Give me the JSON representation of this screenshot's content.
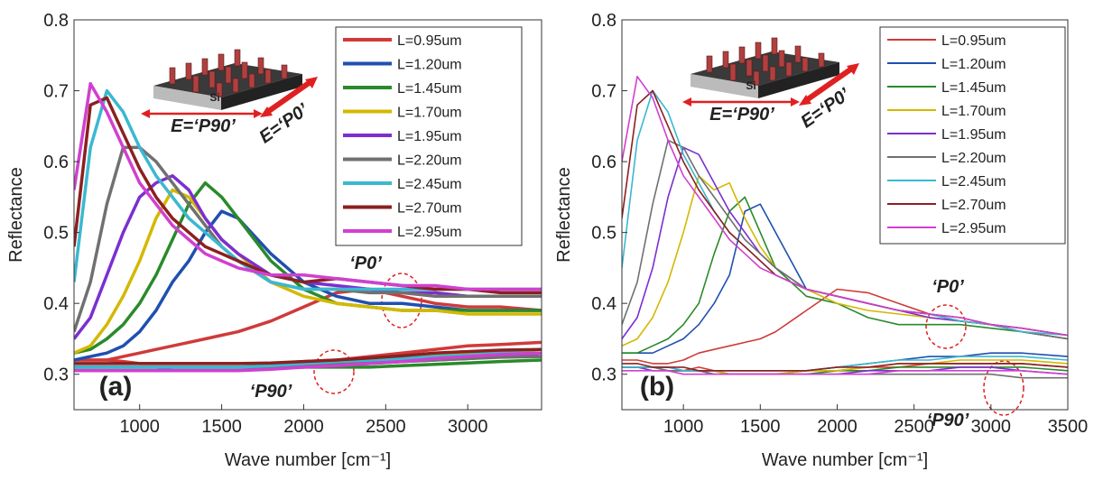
{
  "chart_data": [
    {
      "type": "line",
      "xlabel": "Wave number [cm⁻¹]",
      "ylabel": "Reflectance",
      "x": [
        600,
        700,
        800,
        900,
        1000,
        1100,
        1200,
        1300,
        1400,
        1500,
        1600,
        1800,
        2000,
        2200,
        2400,
        2600,
        2800,
        3000,
        3200,
        3450
      ],
      "xlim": [
        600,
        3450
      ],
      "xticks": [
        1000,
        1500,
        2000,
        2500,
        3000
      ],
      "ylim": [
        0.25,
        0.8
      ],
      "yticks": [
        0.3,
        0.4,
        0.5,
        0.6,
        0.7,
        0.8
      ],
      "grid": false,
      "legend": "upper right",
      "series": [
        {
          "name": "L=0.95um",
          "color": "#d03a3a",
          "values": [
            0.32,
            0.32,
            0.32,
            0.325,
            0.33,
            0.335,
            0.34,
            0.345,
            0.35,
            0.355,
            0.36,
            0.375,
            0.395,
            0.415,
            0.42,
            0.41,
            0.4,
            0.395,
            0.395,
            0.39
          ]
        },
        {
          "name": "L=1.20um",
          "color": "#1f4fb0",
          "values": [
            0.32,
            0.325,
            0.33,
            0.34,
            0.36,
            0.39,
            0.43,
            0.46,
            0.5,
            0.53,
            0.52,
            0.47,
            0.43,
            0.41,
            0.4,
            0.4,
            0.395,
            0.39,
            0.39,
            0.39
          ]
        },
        {
          "name": "L=1.45um",
          "color": "#2a8a2a",
          "values": [
            0.33,
            0.335,
            0.35,
            0.37,
            0.4,
            0.44,
            0.49,
            0.54,
            0.57,
            0.55,
            0.52,
            0.46,
            0.42,
            0.4,
            0.395,
            0.39,
            0.39,
            0.39,
            0.39,
            0.39
          ]
        },
        {
          "name": "L=1.70um",
          "color": "#d4b800",
          "values": [
            0.33,
            0.34,
            0.37,
            0.41,
            0.46,
            0.52,
            0.56,
            0.55,
            0.52,
            0.49,
            0.47,
            0.43,
            0.41,
            0.4,
            0.395,
            0.39,
            0.39,
            0.385,
            0.385,
            0.385
          ]
        },
        {
          "name": "L=1.95um",
          "color": "#7b2fd0",
          "values": [
            0.35,
            0.38,
            0.44,
            0.5,
            0.55,
            0.57,
            0.58,
            0.56,
            0.52,
            0.49,
            0.47,
            0.44,
            0.43,
            0.425,
            0.42,
            0.415,
            0.415,
            0.41,
            0.41,
            0.41
          ]
        },
        {
          "name": "L=2.20um",
          "color": "#707070",
          "values": [
            0.36,
            0.43,
            0.54,
            0.62,
            0.62,
            0.6,
            0.57,
            0.54,
            0.51,
            0.48,
            0.46,
            0.43,
            0.42,
            0.42,
            0.415,
            0.415,
            0.41,
            0.41,
            0.41,
            0.41
          ]
        },
        {
          "name": "L=2.45um",
          "color": "#3bb8d0",
          "values": [
            0.43,
            0.62,
            0.7,
            0.67,
            0.62,
            0.58,
            0.55,
            0.52,
            0.5,
            0.48,
            0.46,
            0.43,
            0.42,
            0.42,
            0.42,
            0.42,
            0.42,
            0.42,
            0.42,
            0.42
          ]
        },
        {
          "name": "L=2.70um",
          "color": "#8b2020",
          "values": [
            0.48,
            0.68,
            0.69,
            0.64,
            0.59,
            0.55,
            0.52,
            0.5,
            0.48,
            0.47,
            0.46,
            0.44,
            0.43,
            0.435,
            0.43,
            0.425,
            0.42,
            0.42,
            0.415,
            0.415
          ]
        },
        {
          "name": "L=2.95um",
          "color": "#d040d0",
          "values": [
            0.56,
            0.71,
            0.67,
            0.62,
            0.57,
            0.54,
            0.51,
            0.49,
            0.47,
            0.46,
            0.45,
            0.44,
            0.44,
            0.435,
            0.43,
            0.425,
            0.425,
            0.42,
            0.42,
            0.42
          ]
        }
      ],
      "series_p90": [
        {
          "color": "#d03a3a",
          "values": [
            0.32,
            0.32,
            0.32,
            0.318,
            0.315,
            0.315,
            0.315,
            0.315,
            0.315,
            0.315,
            0.315,
            0.315,
            0.318,
            0.32,
            0.325,
            0.33,
            0.335,
            0.34,
            0.342,
            0.345
          ]
        },
        {
          "color": "#1f4fb0",
          "values": [
            0.31,
            0.31,
            0.31,
            0.31,
            0.31,
            0.31,
            0.31,
            0.31,
            0.31,
            0.31,
            0.31,
            0.31,
            0.312,
            0.315,
            0.318,
            0.32,
            0.322,
            0.325,
            0.328,
            0.33
          ]
        },
        {
          "color": "#2a8a2a",
          "values": [
            0.31,
            0.31,
            0.31,
            0.31,
            0.31,
            0.31,
            0.31,
            0.31,
            0.31,
            0.31,
            0.31,
            0.31,
            0.31,
            0.31,
            0.31,
            0.312,
            0.314,
            0.316,
            0.318,
            0.32
          ]
        },
        {
          "color": "#d4b800",
          "values": [
            0.31,
            0.31,
            0.31,
            0.31,
            0.31,
            0.31,
            0.31,
            0.31,
            0.31,
            0.31,
            0.31,
            0.312,
            0.315,
            0.318,
            0.32,
            0.323,
            0.326,
            0.33,
            0.332,
            0.335
          ]
        },
        {
          "color": "#7b2fd0",
          "values": [
            0.305,
            0.305,
            0.305,
            0.305,
            0.305,
            0.305,
            0.31,
            0.31,
            0.31,
            0.31,
            0.31,
            0.31,
            0.31,
            0.312,
            0.315,
            0.318,
            0.32,
            0.322,
            0.325,
            0.33
          ]
        },
        {
          "color": "#707070",
          "values": [
            0.31,
            0.31,
            0.31,
            0.31,
            0.31,
            0.31,
            0.31,
            0.31,
            0.31,
            0.31,
            0.31,
            0.31,
            0.312,
            0.314,
            0.316,
            0.318,
            0.32,
            0.322,
            0.324,
            0.325
          ]
        },
        {
          "color": "#3bb8d0",
          "values": [
            0.31,
            0.31,
            0.31,
            0.31,
            0.31,
            0.31,
            0.31,
            0.31,
            0.31,
            0.31,
            0.31,
            0.312,
            0.315,
            0.318,
            0.32,
            0.322,
            0.325,
            0.327,
            0.33,
            0.33
          ]
        },
        {
          "color": "#8b2020",
          "values": [
            0.315,
            0.315,
            0.315,
            0.315,
            0.315,
            0.315,
            0.315,
            0.315,
            0.315,
            0.315,
            0.315,
            0.316,
            0.318,
            0.32,
            0.323,
            0.326,
            0.33,
            0.332,
            0.334,
            0.335
          ]
        },
        {
          "color": "#d040d0",
          "values": [
            0.305,
            0.305,
            0.305,
            0.305,
            0.305,
            0.305,
            0.305,
            0.305,
            0.305,
            0.305,
            0.305,
            0.307,
            0.31,
            0.312,
            0.315,
            0.318,
            0.322,
            0.325,
            0.328,
            0.33
          ]
        }
      ],
      "annotations": [
        "Si",
        "E=‘P90’",
        "E=‘P0’",
        "‘P0’",
        "‘P90’",
        "(a)"
      ]
    },
    {
      "type": "line",
      "xlabel": "Wave number [cm⁻¹]",
      "ylabel": "Reflectance",
      "x": [
        600,
        700,
        800,
        900,
        1000,
        1100,
        1200,
        1300,
        1400,
        1500,
        1600,
        1800,
        2000,
        2200,
        2400,
        2600,
        2800,
        3000,
        3200,
        3500
      ],
      "xlim": [
        600,
        3500
      ],
      "xticks": [
        1000,
        1500,
        2000,
        2500,
        3000,
        3500
      ],
      "ylim": [
        0.25,
        0.8
      ],
      "yticks": [
        0.3,
        0.4,
        0.5,
        0.6,
        0.7,
        0.8
      ],
      "grid": false,
      "legend": "upper right",
      "series": [
        {
          "name": "L=0.95um",
          "color": "#d03a3a",
          "values": [
            0.32,
            0.32,
            0.315,
            0.315,
            0.32,
            0.33,
            0.335,
            0.34,
            0.345,
            0.35,
            0.36,
            0.39,
            0.42,
            0.415,
            0.4,
            0.385,
            0.375,
            0.37,
            0.365,
            0.355
          ]
        },
        {
          "name": "L=1.20um",
          "color": "#1f4fb0",
          "values": [
            0.33,
            0.33,
            0.33,
            0.34,
            0.35,
            0.37,
            0.4,
            0.44,
            0.53,
            0.54,
            0.5,
            0.42,
            0.41,
            0.4,
            0.39,
            0.385,
            0.375,
            0.37,
            0.36,
            0.35
          ]
        },
        {
          "name": "L=1.45um",
          "color": "#2a8a2a",
          "values": [
            0.33,
            0.33,
            0.34,
            0.35,
            0.37,
            0.4,
            0.47,
            0.53,
            0.55,
            0.5,
            0.45,
            0.41,
            0.4,
            0.38,
            0.37,
            0.37,
            0.37,
            0.365,
            0.36,
            0.35
          ]
        },
        {
          "name": "L=1.70um",
          "color": "#d4b800",
          "values": [
            0.34,
            0.35,
            0.38,
            0.43,
            0.5,
            0.58,
            0.56,
            0.57,
            0.52,
            0.48,
            0.45,
            0.42,
            0.4,
            0.39,
            0.385,
            0.38,
            0.375,
            0.37,
            0.36,
            0.35
          ]
        },
        {
          "name": "L=1.95um",
          "color": "#7b2fd0",
          "values": [
            0.35,
            0.38,
            0.45,
            0.55,
            0.62,
            0.61,
            0.57,
            0.53,
            0.5,
            0.47,
            0.45,
            0.42,
            0.41,
            0.4,
            0.39,
            0.38,
            0.375,
            0.37,
            0.36,
            0.35
          ]
        },
        {
          "name": "L=2.20um",
          "color": "#707070",
          "values": [
            0.37,
            0.43,
            0.54,
            0.63,
            0.62,
            0.58,
            0.55,
            0.52,
            0.49,
            0.47,
            0.45,
            0.42,
            0.41,
            0.4,
            0.39,
            0.385,
            0.375,
            0.37,
            0.36,
            0.35
          ]
        },
        {
          "name": "L=2.45um",
          "color": "#3bb8d0",
          "values": [
            0.45,
            0.63,
            0.7,
            0.67,
            0.61,
            0.57,
            0.53,
            0.5,
            0.48,
            0.46,
            0.44,
            0.42,
            0.41,
            0.4,
            0.39,
            0.385,
            0.375,
            0.37,
            0.36,
            0.355
          ]
        },
        {
          "name": "L=2.70um",
          "color": "#8b2020",
          "values": [
            0.52,
            0.68,
            0.7,
            0.65,
            0.6,
            0.56,
            0.53,
            0.5,
            0.48,
            0.46,
            0.44,
            0.42,
            0.41,
            0.4,
            0.39,
            0.385,
            0.38,
            0.37,
            0.365,
            0.355
          ]
        },
        {
          "name": "L=2.95um",
          "color": "#d040d0",
          "values": [
            0.6,
            0.72,
            0.69,
            0.63,
            0.58,
            0.55,
            0.52,
            0.49,
            0.47,
            0.45,
            0.44,
            0.42,
            0.41,
            0.4,
            0.39,
            0.385,
            0.38,
            0.37,
            0.365,
            0.355
          ]
        }
      ],
      "series_p90": [
        {
          "color": "#d03a3a",
          "values": [
            0.31,
            0.31,
            0.31,
            0.31,
            0.305,
            0.31,
            0.305,
            0.305,
            0.305,
            0.305,
            0.305,
            0.305,
            0.305,
            0.31,
            0.31,
            0.315,
            0.315,
            0.315,
            0.315,
            0.31
          ]
        },
        {
          "color": "#1f4fb0",
          "values": [
            0.31,
            0.31,
            0.31,
            0.31,
            0.305,
            0.305,
            0.305,
            0.3,
            0.3,
            0.3,
            0.3,
            0.305,
            0.31,
            0.315,
            0.32,
            0.325,
            0.325,
            0.33,
            0.33,
            0.325
          ]
        },
        {
          "color": "#2a8a2a",
          "values": [
            0.31,
            0.31,
            0.31,
            0.305,
            0.305,
            0.305,
            0.305,
            0.3,
            0.3,
            0.3,
            0.3,
            0.3,
            0.305,
            0.305,
            0.31,
            0.31,
            0.31,
            0.31,
            0.31,
            0.305
          ]
        },
        {
          "color": "#d4b800",
          "values": [
            0.31,
            0.31,
            0.31,
            0.305,
            0.305,
            0.305,
            0.305,
            0.3,
            0.3,
            0.3,
            0.3,
            0.305,
            0.305,
            0.31,
            0.315,
            0.315,
            0.32,
            0.32,
            0.32,
            0.315
          ]
        },
        {
          "color": "#7b2fd0",
          "values": [
            0.31,
            0.31,
            0.305,
            0.305,
            0.305,
            0.305,
            0.3,
            0.3,
            0.3,
            0.3,
            0.3,
            0.3,
            0.3,
            0.305,
            0.305,
            0.305,
            0.31,
            0.31,
            0.305,
            0.3
          ]
        },
        {
          "color": "#707070",
          "values": [
            0.31,
            0.31,
            0.31,
            0.305,
            0.305,
            0.305,
            0.3,
            0.3,
            0.3,
            0.3,
            0.3,
            0.3,
            0.3,
            0.3,
            0.3,
            0.3,
            0.3,
            0.3,
            0.295,
            0.295
          ]
        },
        {
          "color": "#3bb8d0",
          "values": [
            0.31,
            0.31,
            0.31,
            0.31,
            0.305,
            0.305,
            0.305,
            0.305,
            0.305,
            0.305,
            0.305,
            0.305,
            0.31,
            0.315,
            0.32,
            0.32,
            0.325,
            0.325,
            0.325,
            0.32
          ]
        },
        {
          "color": "#8b2020",
          "values": [
            0.315,
            0.315,
            0.31,
            0.31,
            0.31,
            0.305,
            0.305,
            0.305,
            0.305,
            0.305,
            0.305,
            0.305,
            0.31,
            0.31,
            0.315,
            0.315,
            0.315,
            0.315,
            0.315,
            0.31
          ]
        },
        {
          "color": "#d040d0",
          "values": [
            0.305,
            0.305,
            0.305,
            0.305,
            0.3,
            0.3,
            0.3,
            0.3,
            0.3,
            0.3,
            0.3,
            0.3,
            0.3,
            0.3,
            0.305,
            0.305,
            0.305,
            0.305,
            0.305,
            0.3
          ]
        }
      ],
      "annotations": [
        "Si",
        "E=‘P90’",
        "E=‘P0’",
        "‘P0’",
        "‘P90’",
        "(b)"
      ]
    }
  ]
}
